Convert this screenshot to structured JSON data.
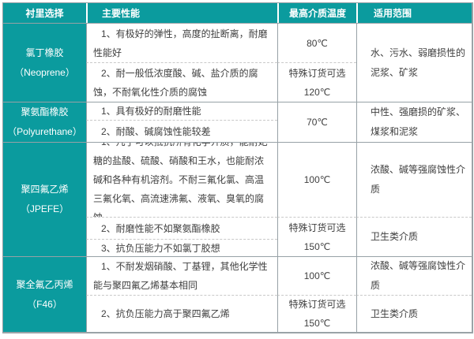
{
  "colors": {
    "accent_teal": "#0b9b9e",
    "line_solid": "#97a1a6",
    "line_dashed": "#c9c9c9",
    "header_text": "#ffffff",
    "body_text": "#3f3f3f"
  },
  "table": {
    "headers": {
      "lining": "衬里选择",
      "performance": "主要性能",
      "max_temp": "最高介质温度",
      "range": "适用范围"
    },
    "groups": [
      {
        "name": "氯丁橡胶",
        "name_en": "（Neoprene）",
        "rows": [
          {
            "performance": "1、有极好的弹性，高度的扯断离，耐磨性能好",
            "temp": "80℃",
            "range": "水、污水、弱磨损性的泥浆、矿浆"
          },
          {
            "performance": "2、耐一般低浓度酸、碱、盐介质的腐蚀，不耐氧化性介质的腐蚀",
            "temp_note": "特殊订货可选",
            "temp": "120℃"
          }
        ]
      },
      {
        "name": "聚氨酯橡胶",
        "name_en": "（Polyurethane）",
        "rows": [
          {
            "performance": "1、具有极好的耐磨性能",
            "temp": "70℃",
            "range": "中性、强磨损的矿浆、煤浆和泥浆"
          },
          {
            "performance": "2、耐酸、碱腐蚀性能较差"
          }
        ]
      },
      {
        "name": "聚四氟乙烯",
        "name_en": "（JPEFE）",
        "rows": [
          {
            "performance": "1、几乎可以抵抗所有化学介质，能耐妃糖的盐酸、硫酸、硝酸和王水，也能耐浓碱和各种有机溶剂。不耐三氟化氯、高温三氟化氧、高流速沸氟、液氧、臭氧的腐蚀",
            "temp": "100℃",
            "range": "浓酸、碱等强腐蚀性介质"
          },
          {
            "performance": "2、耐磨性能不如聚氨酯橡胶",
            "temp_note": "特殊订货可选",
            "temp": "150℃",
            "range": "卫生类介质"
          },
          {
            "performance": "3、抗负压能力不如氯丁胶想"
          }
        ]
      },
      {
        "name": "聚全氟乙丙烯",
        "name_en": "（F46）",
        "rows": [
          {
            "performance": "1、不耐发烟硝酸、丁基锂，其他化学性能与聚四氟乙烯基本相同",
            "temp": "100℃",
            "range": "浓酸、碱等强腐蚀性介质"
          },
          {
            "performance": "2、抗负压能力高于聚四氟乙烯",
            "temp_note": "特殊订货可选",
            "temp": "150℃",
            "range": "卫生类介质"
          }
        ]
      }
    ]
  }
}
